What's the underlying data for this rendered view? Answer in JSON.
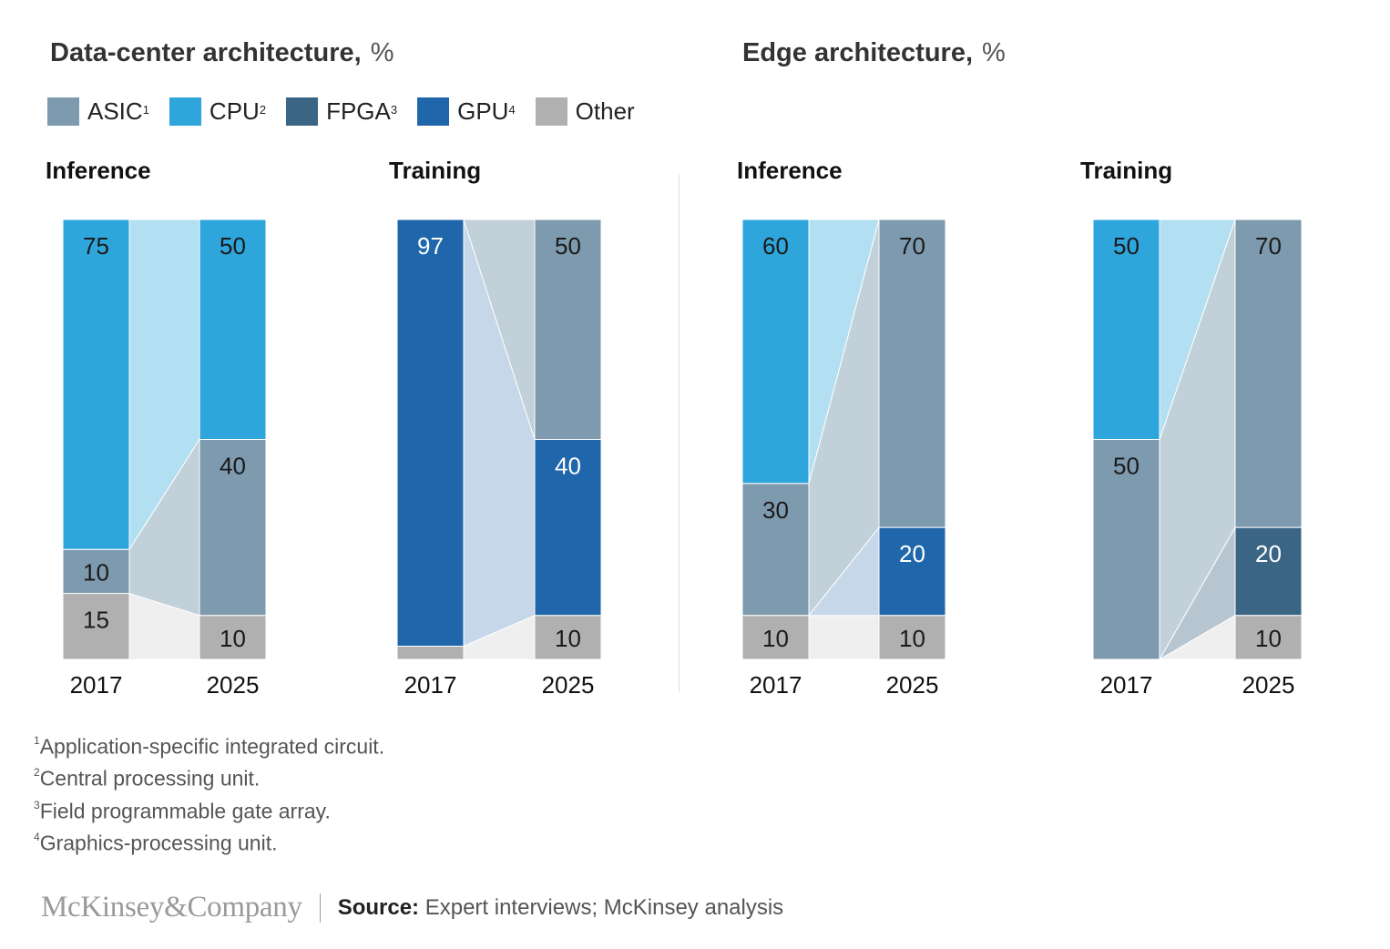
{
  "sections": [
    {
      "title": "Data-center architecture,",
      "unit": "%"
    },
    {
      "title": "Edge architecture,",
      "unit": "%"
    }
  ],
  "legend": [
    {
      "label": "ASIC",
      "sup": "1",
      "color": "#7e9aaf"
    },
    {
      "label": "CPU",
      "sup": "2",
      "color": "#2ea6dc"
    },
    {
      "label": "FPGA",
      "sup": "3",
      "color": "#3b6584"
    },
    {
      "label": "GPU",
      "sup": "4",
      "color": "#2066ab"
    },
    {
      "label": "Other",
      "sup": "",
      "color": "#b0b0b0"
    }
  ],
  "chart_data": [
    {
      "type": "bar",
      "section": "Data-center architecture",
      "title": "Inference",
      "categories": [
        "2017",
        "2025"
      ],
      "series": [
        {
          "name": "Other",
          "values": [
            15,
            10
          ]
        },
        {
          "name": "ASIC",
          "values": [
            10,
            40
          ]
        },
        {
          "name": "CPU",
          "values": [
            75,
            50
          ]
        }
      ],
      "ylim": [
        0,
        100
      ]
    },
    {
      "type": "bar",
      "section": "Data-center architecture",
      "title": "Training",
      "categories": [
        "2017",
        "2025"
      ],
      "series": [
        {
          "name": "Other",
          "values": [
            3,
            10
          ]
        },
        {
          "name": "GPU",
          "values": [
            97,
            40
          ]
        },
        {
          "name": "ASIC",
          "values": [
            0,
            50
          ]
        }
      ],
      "ylim": [
        0,
        100
      ]
    },
    {
      "type": "bar",
      "section": "Edge architecture",
      "title": "Inference",
      "categories": [
        "2017",
        "2025"
      ],
      "series": [
        {
          "name": "Other",
          "values": [
            10,
            10
          ]
        },
        {
          "name": "GPU",
          "values": [
            0,
            20
          ]
        },
        {
          "name": "ASIC",
          "values": [
            30,
            70
          ]
        },
        {
          "name": "CPU",
          "values": [
            60,
            0
          ]
        }
      ],
      "ylim": [
        0,
        100
      ]
    },
    {
      "type": "bar",
      "section": "Edge architecture",
      "title": "Training",
      "categories": [
        "2017",
        "2025"
      ],
      "series": [
        {
          "name": "Other",
          "values": [
            0,
            10
          ]
        },
        {
          "name": "FPGA",
          "values": [
            0,
            20
          ]
        },
        {
          "name": "ASIC",
          "values": [
            50,
            70
          ]
        },
        {
          "name": "CPU",
          "values": [
            50,
            0
          ]
        }
      ],
      "ylim": [
        0,
        100
      ]
    }
  ],
  "footnotes": [
    {
      "sup": "1",
      "text": "Application-specific integrated circuit."
    },
    {
      "sup": "2",
      "text": "Central processing unit."
    },
    {
      "sup": "3",
      "text": "Field programmable gate array."
    },
    {
      "sup": "4",
      "text": "Graphics-processing unit."
    }
  ],
  "footer": {
    "brand": "McKinsey&Company",
    "source_label": "Source:",
    "source_text": " Expert interviews; McKinsey analysis"
  }
}
